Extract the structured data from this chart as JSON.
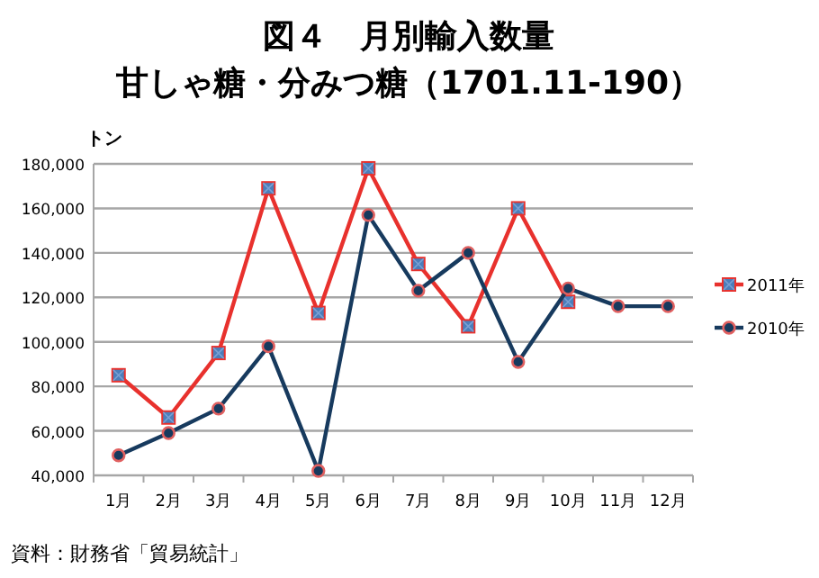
{
  "chart_data": {
    "type": "line",
    "title": "図４　月別輸入数量",
    "subtitle": "甘しゃ糖・分みつ糖（1701.11-190）",
    "ylabel": "トン",
    "categories": [
      "1月",
      "2月",
      "3月",
      "4月",
      "5月",
      "6月",
      "7月",
      "8月",
      "9月",
      "10月",
      "11月",
      "12月"
    ],
    "series": [
      {
        "name": "2011年",
        "color": "#e8312d",
        "marker": "square",
        "values": [
          85000,
          66000,
          95000,
          169000,
          113000,
          178000,
          135000,
          107000,
          160000,
          118000,
          null,
          null
        ]
      },
      {
        "name": "2010年",
        "color": "#173a5e",
        "marker": "circle",
        "values": [
          49000,
          59000,
          70000,
          98000,
          42000,
          157000,
          123000,
          140000,
          91000,
          124000,
          116000,
          116000
        ]
      }
    ],
    "ylim": [
      40000,
      180000
    ],
    "yticks": [
      {
        "value": 40000,
        "label": "40,000"
      },
      {
        "value": 60000,
        "label": "60,000"
      },
      {
        "value": 80000,
        "label": "80,000"
      },
      {
        "value": 100000,
        "label": "100,000"
      },
      {
        "value": 120000,
        "label": "120,000"
      },
      {
        "value": 140000,
        "label": "140,000"
      },
      {
        "value": 160000,
        "label": "160,000"
      },
      {
        "value": 180000,
        "label": "180,000"
      }
    ],
    "grid": "y",
    "legend": "right",
    "annotations": [
      "資料：財務省「貿易統計」"
    ]
  }
}
